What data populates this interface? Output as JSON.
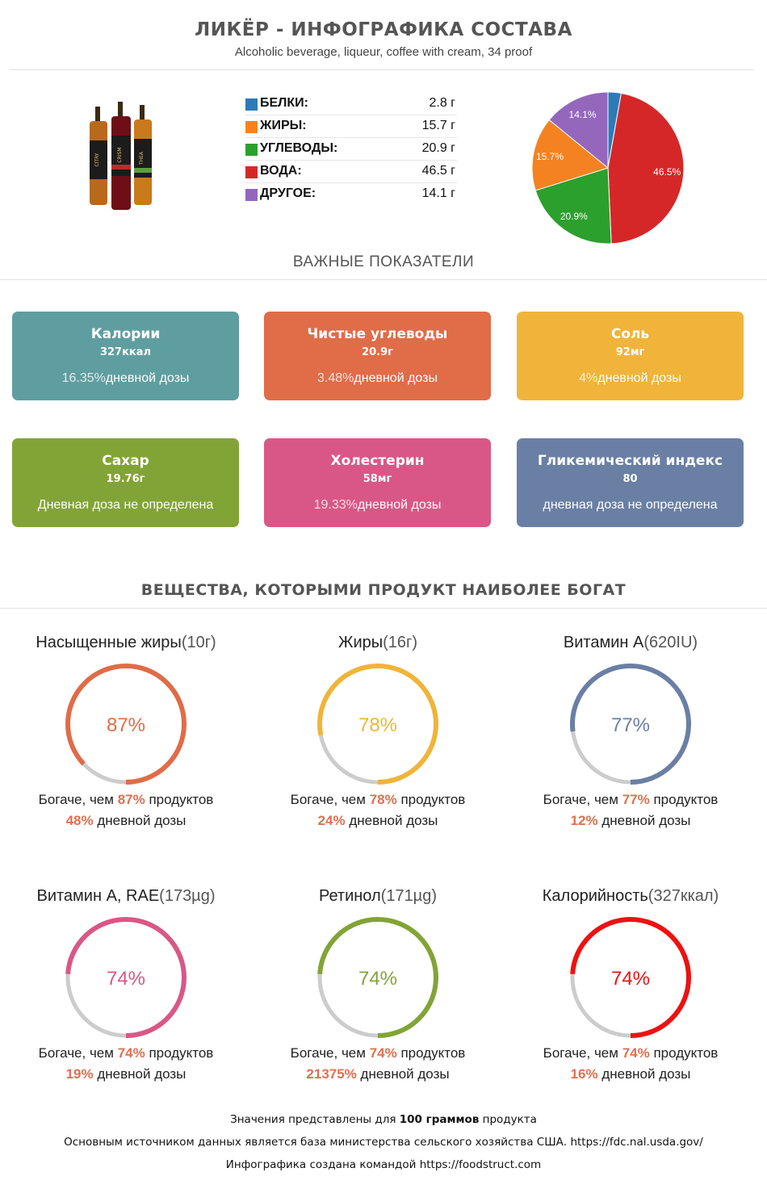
{
  "header": {
    "title": "ЛИКЁР - ИНФОГРАФИКА СОСТАВА",
    "subtitle": "Alcoholic beverage, liqueur, coffee with cream, 34 proof"
  },
  "product_image": {
    "bottle_labels": [
      "CITRY",
      "CRISM",
      "THEA"
    ]
  },
  "macros": [
    {
      "label": "БЕЛКИ:",
      "value": "2.8 г",
      "color": "#2e7ab8"
    },
    {
      "label": "ЖИРЫ:",
      "value": "15.7 г",
      "color": "#f58220"
    },
    {
      "label": "УГЛЕВОДЫ:",
      "value": "20.9 г",
      "color": "#2ca02c"
    },
    {
      "label": "ВОДА:",
      "value": "46.5 г",
      "color": "#d62728"
    },
    {
      "label": "ДРУГОЕ:",
      "value": "14.1 г",
      "color": "#9467bd"
    }
  ],
  "chart_data": {
    "type": "pie",
    "slices": [
      {
        "name": "БЕЛКИ",
        "value": 2.8,
        "label": "",
        "color": "#2e7ab8"
      },
      {
        "name": "ВОДА",
        "value": 46.5,
        "label": "46.5%",
        "color": "#d62728"
      },
      {
        "name": "УГЛЕВОДЫ",
        "value": 20.9,
        "label": "20.9%",
        "color": "#2ca02c"
      },
      {
        "name": "ЖИРЫ",
        "value": 15.7,
        "label": "15.7%",
        "color": "#f58220"
      },
      {
        "name": "ДРУГОЕ",
        "value": 14.1,
        "label": "14.1%",
        "color": "#9467bd"
      }
    ]
  },
  "key_indicators": {
    "title": "ВАЖНЫЕ ПОКАЗАТЕЛИ",
    "cards": [
      {
        "name": "Калории",
        "value": "327ккал",
        "pct": "16.35%",
        "daily": "дневной дозы",
        "color": "#5f9ea0"
      },
      {
        "name": "Чистые углеводы",
        "value": "20.9г",
        "pct": "3.48%",
        "daily": "дневной дозы",
        "color": "#e06c48"
      },
      {
        "name": "Соль",
        "value": "92мг",
        "pct": "4%",
        "daily": "дневной дозы",
        "color": "#f0b43a"
      },
      {
        "name": "Сахар",
        "value": "19.76г",
        "pct": "",
        "daily": "Дневная доза не определена",
        "color": "#82a436"
      },
      {
        "name": "Холестерин",
        "value": "58мг",
        "pct": "19.33%",
        "daily": "дневной дозы",
        "color": "#d95786"
      },
      {
        "name": "Гликемический индекс",
        "value": "80",
        "pct": "",
        "daily": "дневная доза не определена",
        "color": "#6a7fa4"
      }
    ]
  },
  "rich_in": {
    "title": "ВЕЩЕСТВА, КОТОРЫМИ ПРОДУКТ НАИБОЛЕЕ БОГАТ",
    "items": [
      {
        "name": "Насыщенные жиры",
        "amount": "(10г)",
        "percent": 87,
        "percent_label": "87%",
        "color": "#e06c48",
        "richer_prefix": "Богаче, чем",
        "richer_pct": "87%",
        "richer_suffix": "продуктов",
        "daily_pct": "48%",
        "daily_suffix": "дневной дозы"
      },
      {
        "name": "Жиры",
        "amount": "(16г)",
        "percent": 78,
        "percent_label": "78%",
        "color": "#f0b43a",
        "richer_prefix": "Богаче, чем",
        "richer_pct": "78%",
        "richer_suffix": "продуктов",
        "daily_pct": "24%",
        "daily_suffix": "дневной дозы"
      },
      {
        "name": "Витамин A",
        "amount": "(620IU)",
        "percent": 77,
        "percent_label": "77%",
        "color": "#6a7fa4",
        "richer_prefix": "Богаче, чем",
        "richer_pct": "77%",
        "richer_suffix": "продуктов",
        "daily_pct": "12%",
        "daily_suffix": "дневной дозы"
      },
      {
        "name": "Витамин A, RAE",
        "amount": "(173µg)",
        "percent": 74,
        "percent_label": "74%",
        "color": "#d95786",
        "richer_prefix": "Богаче, чем",
        "richer_pct": "74%",
        "richer_suffix": "продуктов",
        "daily_pct": "19%",
        "daily_suffix": "дневной дозы"
      },
      {
        "name": "Ретинол",
        "amount": "(171µg)",
        "percent": 74,
        "percent_label": "74%",
        "color": "#82a436",
        "richer_prefix": "Богаче, чем",
        "richer_pct": "74%",
        "richer_suffix": "продуктов",
        "daily_pct": "21375%",
        "daily_suffix": "дневной дозы"
      },
      {
        "name": "Калорийность",
        "amount": "(327ккал)",
        "percent": 74,
        "percent_label": "74%",
        "color": "#ee1111",
        "richer_prefix": "Богаче, чем",
        "richer_pct": "74%",
        "richer_suffix": "продуктов",
        "daily_pct": "16%",
        "daily_suffix": "дневной дозы"
      }
    ]
  },
  "footer": {
    "line1_pre": "Значения представлены для",
    "line1_bold": "100 граммов",
    "line1_post": "продукта",
    "line2": "Основным источником данных является база министерства сельского хозяйства США. https://fdc.nal.usda.gov/",
    "line3": "Инфографика создана командой https://foodstruct.com"
  }
}
